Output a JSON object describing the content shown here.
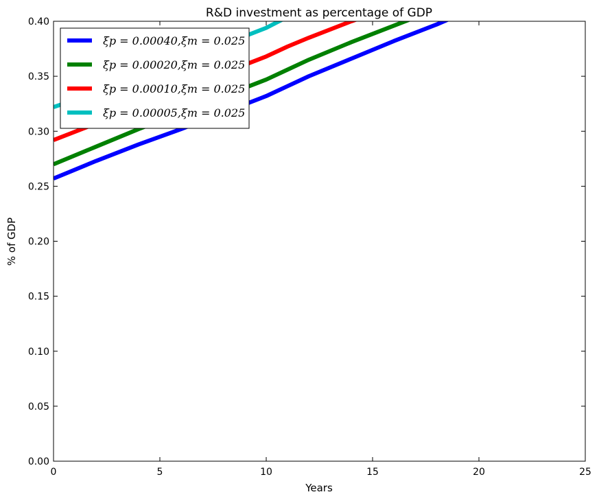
{
  "chart_data": {
    "type": "line",
    "title": "R&D investment as percentage of  GDP",
    "xlabel": "Years",
    "ylabel": "% of GDP",
    "xlim": [
      0,
      25
    ],
    "ylim": [
      0.0,
      0.4
    ],
    "xticks": [
      0,
      5,
      10,
      15,
      20,
      25
    ],
    "yticks": [
      0.0,
      0.05,
      0.1,
      0.15,
      0.2,
      0.25,
      0.3,
      0.35,
      0.4
    ],
    "grid": false,
    "legend_position": "top-left",
    "series": [
      {
        "name": "ξp = 0.00040,ξm = 0.025",
        "color": "#0000ff",
        "x": [
          0,
          2,
          4,
          6,
          8,
          10,
          11,
          12,
          14,
          16,
          18,
          18.6
        ],
        "y": [
          0.257,
          0.273,
          0.288,
          0.302,
          0.317,
          0.332,
          0.341,
          0.35,
          0.366,
          0.382,
          0.397,
          0.402
        ]
      },
      {
        "name": "ξp = 0.00020,ξm = 0.025",
        "color": "#008000",
        "x": [
          0,
          2,
          4,
          6,
          8,
          10,
          11,
          12,
          14,
          16,
          16.8
        ],
        "y": [
          0.27,
          0.286,
          0.302,
          0.317,
          0.332,
          0.347,
          0.356,
          0.365,
          0.381,
          0.396,
          0.402
        ]
      },
      {
        "name": "ξp = 0.00010,ξm = 0.025",
        "color": "#ff0000",
        "x": [
          0,
          2,
          4,
          6,
          8,
          10,
          11,
          12,
          14,
          14.3
        ],
        "y": [
          0.292,
          0.307,
          0.322,
          0.337,
          0.353,
          0.368,
          0.377,
          0.385,
          0.4,
          0.402
        ]
      },
      {
        "name": "ξp = 0.00005,ξm = 0.025",
        "color": "#00bfbf",
        "x": [
          0,
          2,
          4,
          6,
          8,
          10,
          10.8
        ],
        "y": [
          0.322,
          0.335,
          0.35,
          0.364,
          0.379,
          0.394,
          0.402
        ]
      }
    ]
  }
}
